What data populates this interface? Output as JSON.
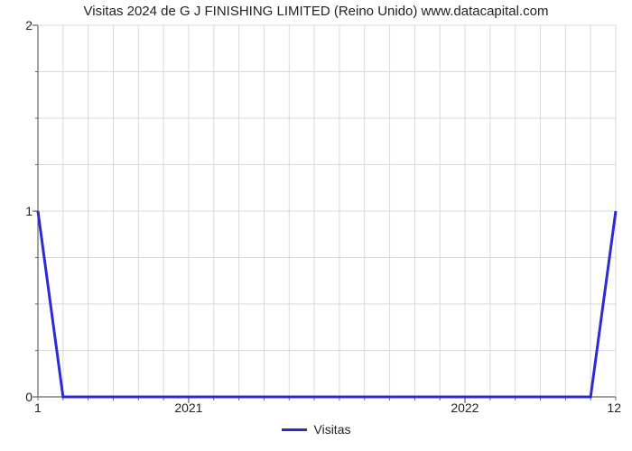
{
  "chart": {
    "type": "line",
    "title": "Visitas 2024 de G J FINISHING LIMITED (Reino Unido) www.datacapital.com",
    "title_fontsize": 15,
    "background_color": "#ffffff",
    "plot_background": "#ffffff",
    "grid_color": "#d9d9d9",
    "axis_color": "#666666",
    "tick_color": "#666666",
    "text_color": "#222222",
    "series": {
      "color": "#2b2bd4",
      "line_width": 3,
      "label": "Visitas",
      "x": [
        0,
        1,
        2,
        3,
        4,
        5,
        6,
        7,
        8,
        9,
        10,
        11,
        12,
        13,
        14,
        15,
        16,
        17,
        18,
        19,
        20,
        21,
        22,
        23
      ],
      "y": [
        1.0,
        0.0,
        0.0,
        0.0,
        0.0,
        0.0,
        0.0,
        0.0,
        0.0,
        0.0,
        0.0,
        0.0,
        0.0,
        0.0,
        0.0,
        0.0,
        0.0,
        0.0,
        0.0,
        0.0,
        0.0,
        0.0,
        0.0,
        1.0
      ]
    },
    "x_axis": {
      "min": 0,
      "max": 23,
      "minor_tick_count": 24,
      "major_labels": [
        {
          "pos": 6,
          "text": "2021"
        },
        {
          "pos": 17,
          "text": "2022"
        }
      ],
      "left_label": "1",
      "right_label": "12"
    },
    "y_axis": {
      "min": 0,
      "max": 2,
      "tick_step": 1,
      "minor_per_major": 4,
      "labels": [
        "0",
        "1",
        "2"
      ]
    },
    "grid": {
      "v_count": 24,
      "h_minor_count": 8
    },
    "legend": {
      "position": "bottom-center",
      "swatch_width": 28,
      "swatch_height": 3
    }
  }
}
